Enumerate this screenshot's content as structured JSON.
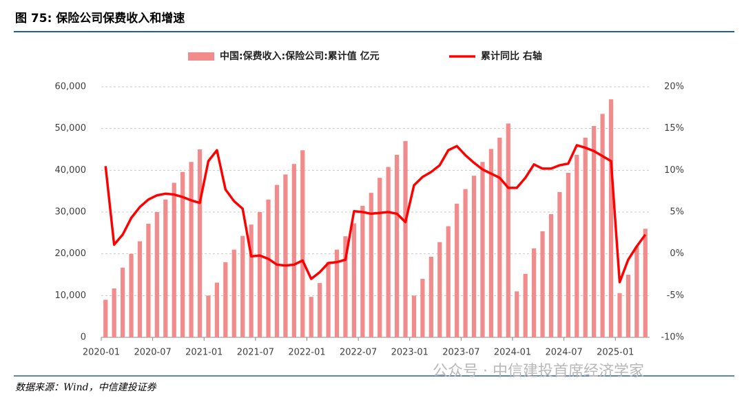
{
  "title": "图 75: 保险公司保费收入和增速",
  "source": "数据来源：Wind，中信建投证券",
  "watermark": "公众号 · 中信建投首席经济学家",
  "chart_data": {
    "type": "bar_line",
    "categories": [
      "2020-01",
      null,
      null,
      null,
      null,
      null,
      "2020-07",
      null,
      null,
      null,
      null,
      null,
      "2021-01",
      null,
      null,
      null,
      null,
      null,
      "2021-07",
      null,
      null,
      null,
      null,
      null,
      "2022-01",
      null,
      null,
      null,
      null,
      null,
      "2022-07",
      null,
      null,
      null,
      null,
      null,
      "2023-01",
      null,
      null,
      null,
      null,
      null,
      "2023-07",
      null,
      null,
      null,
      null,
      null,
      "2024-01",
      null,
      null,
      null,
      null,
      null,
      "2024-07",
      null,
      null,
      null,
      null,
      null,
      "2025-01",
      null,
      null,
      null
    ],
    "series": [
      {
        "name": "中国:保费收入:保险公司:累计值 亿元",
        "type": "bar",
        "color": "#f28b8b",
        "axis": "y",
        "values": [
          9000,
          11700,
          16700,
          20000,
          23000,
          27200,
          30000,
          33000,
          37000,
          39600,
          42000,
          45000,
          10000,
          13100,
          18000,
          21000,
          24300,
          27000,
          30000,
          33000,
          36500,
          39000,
          41500,
          44800,
          9700,
          13000,
          18000,
          21000,
          24200,
          27300,
          31500,
          34600,
          38200,
          40800,
          43700,
          47000,
          10000,
          14000,
          19300,
          22800,
          26600,
          32000,
          35500,
          38700,
          42000,
          45100,
          47800,
          51200,
          11000,
          15200,
          21300,
          25400,
          29500,
          34800,
          39400,
          43700,
          47800,
          50600,
          53500,
          57000,
          10600,
          15000,
          21700,
          26000
        ]
      },
      {
        "name": "累计同比 右轴",
        "type": "line",
        "color": "#ff0000",
        "axis": "y2",
        "values": [
          10.5,
          1.1,
          2.3,
          4.3,
          5.6,
          6.5,
          7.0,
          7.2,
          7.1,
          6.8,
          6.4,
          6.1,
          11.1,
          12.4,
          7.7,
          6.3,
          5.4,
          -0.3,
          -0.2,
          -0.6,
          -1.3,
          -1.4,
          -1.3,
          -0.8,
          -3.0,
          -2.2,
          -1.1,
          -1.0,
          -0.7,
          5.1,
          5.0,
          4.8,
          4.9,
          5.0,
          4.8,
          3.8,
          8.2,
          9.2,
          9.8,
          10.6,
          12.4,
          12.9,
          11.8,
          10.9,
          10.1,
          9.6,
          9.1,
          7.9,
          7.9,
          9.1,
          10.7,
          10.2,
          10.2,
          10.6,
          10.8,
          13.0,
          12.7,
          12.3,
          11.7,
          11.1,
          -3.4,
          -0.7,
          0.9,
          2.3
        ]
      }
    ],
    "ylim": [
      0,
      60000
    ],
    "yticks": [
      0,
      {
        "value": 10000,
        "label": "10,000"
      },
      {
        "value": 20000,
        "label": "20,000"
      },
      {
        "value": 30000,
        "label": "30,000"
      },
      {
        "value": 40000,
        "label": "40,000"
      },
      {
        "value": 50000,
        "label": "50,000"
      },
      {
        "value": 60000,
        "label": "60,000"
      }
    ],
    "y2lim": [
      -10,
      20
    ],
    "y2ticks": [
      {
        "value": -10,
        "label": "-10%"
      },
      {
        "value": -5,
        "label": "-5%"
      },
      {
        "value": 0,
        "label": "0%"
      },
      {
        "value": 5,
        "label": "5%"
      },
      {
        "value": 10,
        "label": "10%"
      },
      {
        "value": 15,
        "label": "15%"
      },
      {
        "value": 20,
        "label": "20%"
      }
    ],
    "grid": true,
    "legend": "top"
  }
}
